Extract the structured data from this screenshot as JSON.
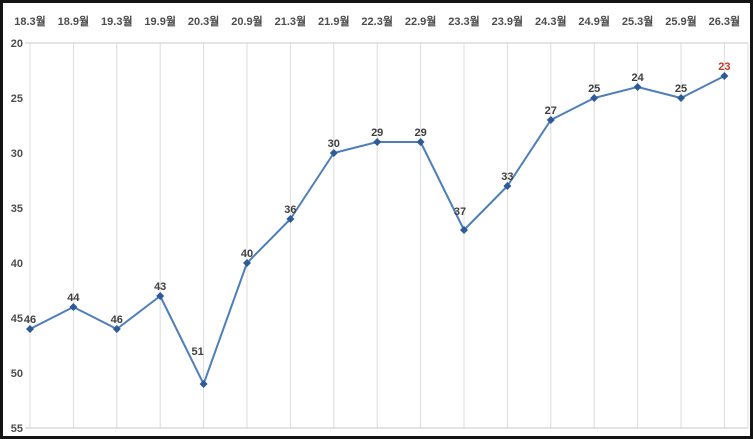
{
  "chart_data": {
    "type": "line",
    "title": "",
    "series_name": "",
    "categories": [
      "18.3월",
      "18.9월",
      "19.3월",
      "19.9월",
      "20.3월",
      "20.9월",
      "21.3월",
      "21.9월",
      "22.3월",
      "22.9월",
      "23.3월",
      "23.9월",
      "24.3월",
      "24.9월",
      "25.3월",
      "25.9월",
      "26.3월"
    ],
    "values": [
      46,
      44,
      46,
      43,
      51,
      40,
      36,
      30,
      29,
      29,
      37,
      33,
      27,
      25,
      24,
      25,
      23
    ],
    "x_axis": {
      "position": "top"
    },
    "y_axis": {
      "min": 20,
      "max": 55,
      "ticks": [
        20,
        25,
        30,
        35,
        40,
        45,
        50,
        55
      ],
      "inverted": true
    },
    "grid": {
      "vertical": true,
      "horizontal": false
    },
    "legend": "none",
    "data_labels": {
      "visible": true,
      "highlight_last": true
    },
    "colors": {
      "line": "#4e7fba",
      "marker": "#2e5b97",
      "data_label": "#3f3f3f",
      "last_data_label": "#bf3a2b",
      "axis_label": "#4d4d4d",
      "gridline": "#dcdcdc",
      "plot_border": "#c9c9c9",
      "frame_border": "#141414",
      "background": "#ffffff"
    }
  }
}
